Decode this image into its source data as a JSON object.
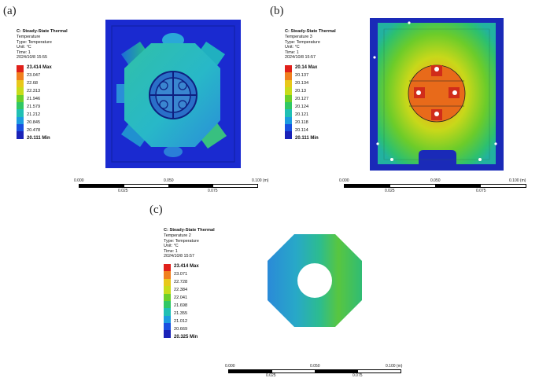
{
  "panels": [
    {
      "letter": "(a)",
      "legend": {
        "title": "C: Steady-State Thermal",
        "meta": [
          "Temperature",
          "Type: Temperature",
          "Unit: °C",
          "Time: 1",
          "2024/10/8 15:55"
        ],
        "labels": [
          "23.414 Max",
          "23.047",
          "22.68",
          "22.313",
          "21.946",
          "21.579",
          "21.212",
          "20.845",
          "20.478",
          "20.111 Min"
        ]
      },
      "scalebar": {
        "ticks": [
          "0.000",
          "0.050",
          "0.100 (m)"
        ],
        "subticks": [
          "0.025",
          "0.075"
        ]
      }
    },
    {
      "letter": "(b)",
      "legend": {
        "title": "C: Steady-State Thermal",
        "meta": [
          "Temperature 3",
          "Type: Temperature",
          "Unit: °C",
          "Time: 1",
          "2024/10/8 15:57"
        ],
        "labels": [
          "20.14 Max",
          "20.137",
          "20.134",
          "20.13",
          "20.127",
          "20.124",
          "20.121",
          "20.118",
          "20.114",
          "20.111 Min"
        ]
      },
      "scalebar": {
        "ticks": [
          "0.000",
          "0.050",
          "0.100 (m)"
        ],
        "subticks": [
          "0.025",
          "0.075"
        ]
      }
    },
    {
      "letter": "(c)",
      "legend": {
        "title": "C: Steady-State Thermal",
        "meta": [
          "Temperature 2",
          "Type: Temperature",
          "Unit: °C",
          "Time: 1",
          "2024/10/8 15:57"
        ],
        "labels": [
          "23.414 Max",
          "23.071",
          "22.728",
          "22.384",
          "22.041",
          "21.698",
          "21.355",
          "21.012",
          "20.669",
          "20.325 Min"
        ]
      },
      "scalebar": {
        "ticks": [
          "0.000",
          "0.050",
          "0.100 (m)"
        ],
        "subticks": [
          "0.025",
          "0.075"
        ]
      }
    }
  ],
  "colormap": [
    "#e0201a",
    "#f0801e",
    "#e8c81a",
    "#c8dc1a",
    "#6cd02a",
    "#30c864",
    "#20c0b4",
    "#1c9ce0",
    "#1850e0",
    "#1a22b8"
  ]
}
